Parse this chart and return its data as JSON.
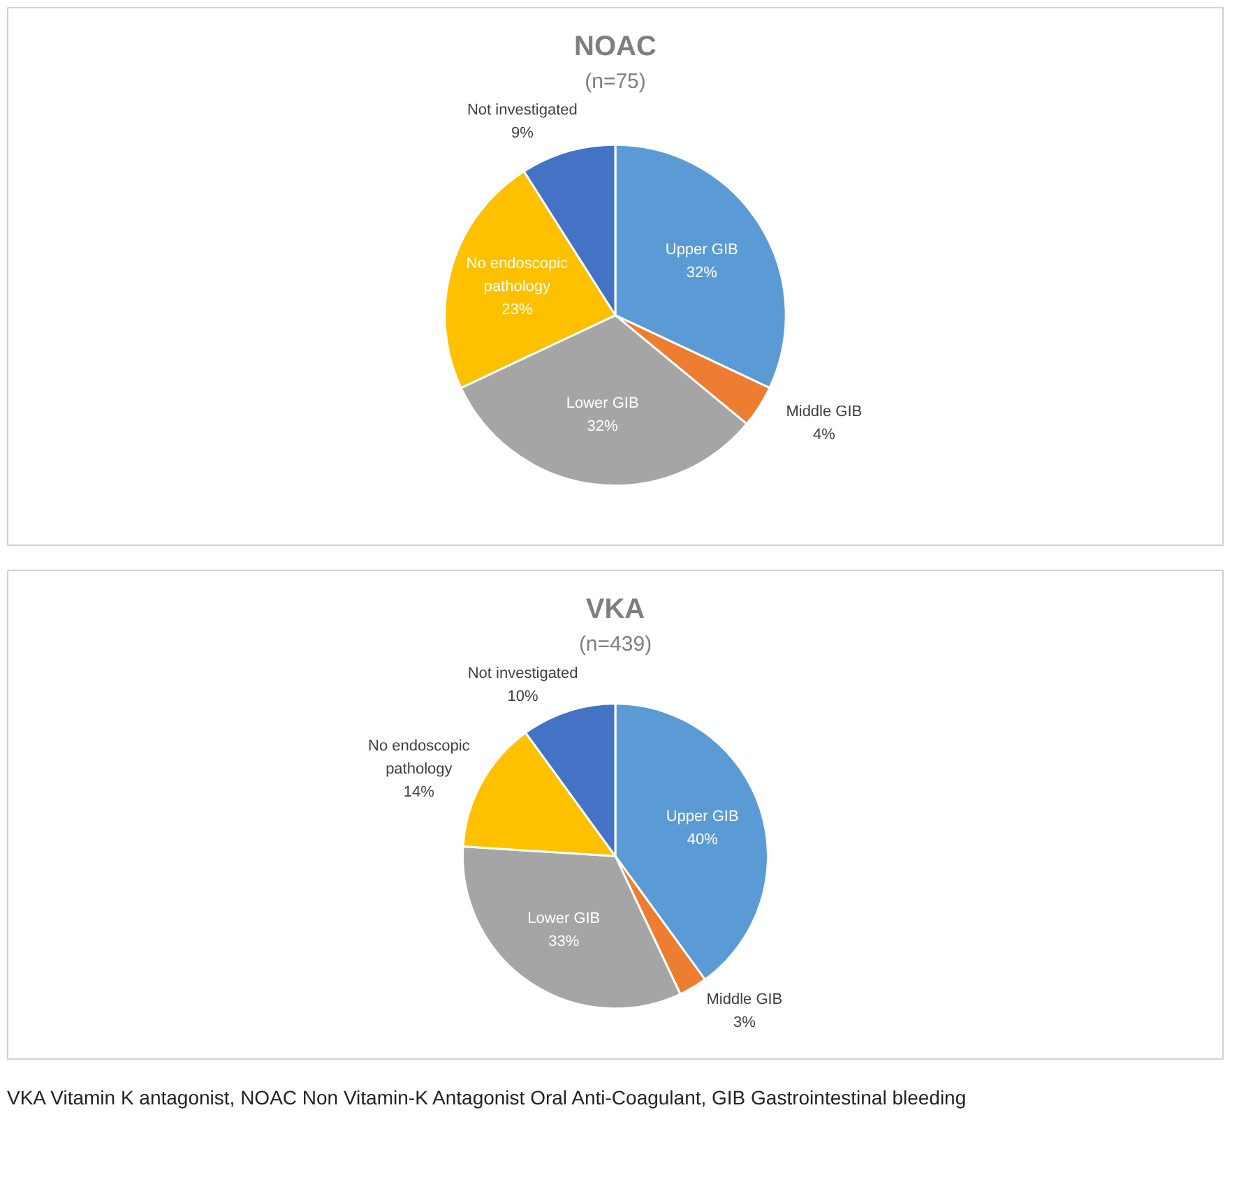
{
  "chart_data": [
    {
      "type": "pie",
      "title": "NOAC",
      "subtitle": "(n=75)",
      "categories": [
        "Upper GIB",
        "Middle GIB",
        "Lower GIB",
        "No endoscopic pathology",
        "Not investigated"
      ],
      "values": [
        32,
        4,
        32,
        23,
        9
      ],
      "value_labels": [
        "32%",
        "4%",
        "32%",
        "23%",
        "9%"
      ],
      "colors": [
        "#5b9bd5",
        "#ed7d31",
        "#a5a5a5",
        "#ffc000",
        "#4472c4"
      ],
      "legend": false
    },
    {
      "type": "pie",
      "title": "VKA",
      "subtitle": "(n=439)",
      "categories": [
        "Upper GIB",
        "Middle GIB",
        "Lower GIB",
        "No endoscopic pathology",
        "Not investigated"
      ],
      "values": [
        40,
        3,
        33,
        14,
        10
      ],
      "value_labels": [
        "40%",
        "3%",
        "33%",
        "14%",
        "10%"
      ],
      "colors": [
        "#5b9bd5",
        "#ed7d31",
        "#a5a5a5",
        "#ffc000",
        "#4472c4"
      ],
      "legend": false,
      "annotations": [
        "VKA Vitamin K antagonist, NOAC Non Vitamin-K Antagonist Oral Anti-Coagulant, GIB Gastrointestinal bleeding"
      ]
    }
  ]
}
